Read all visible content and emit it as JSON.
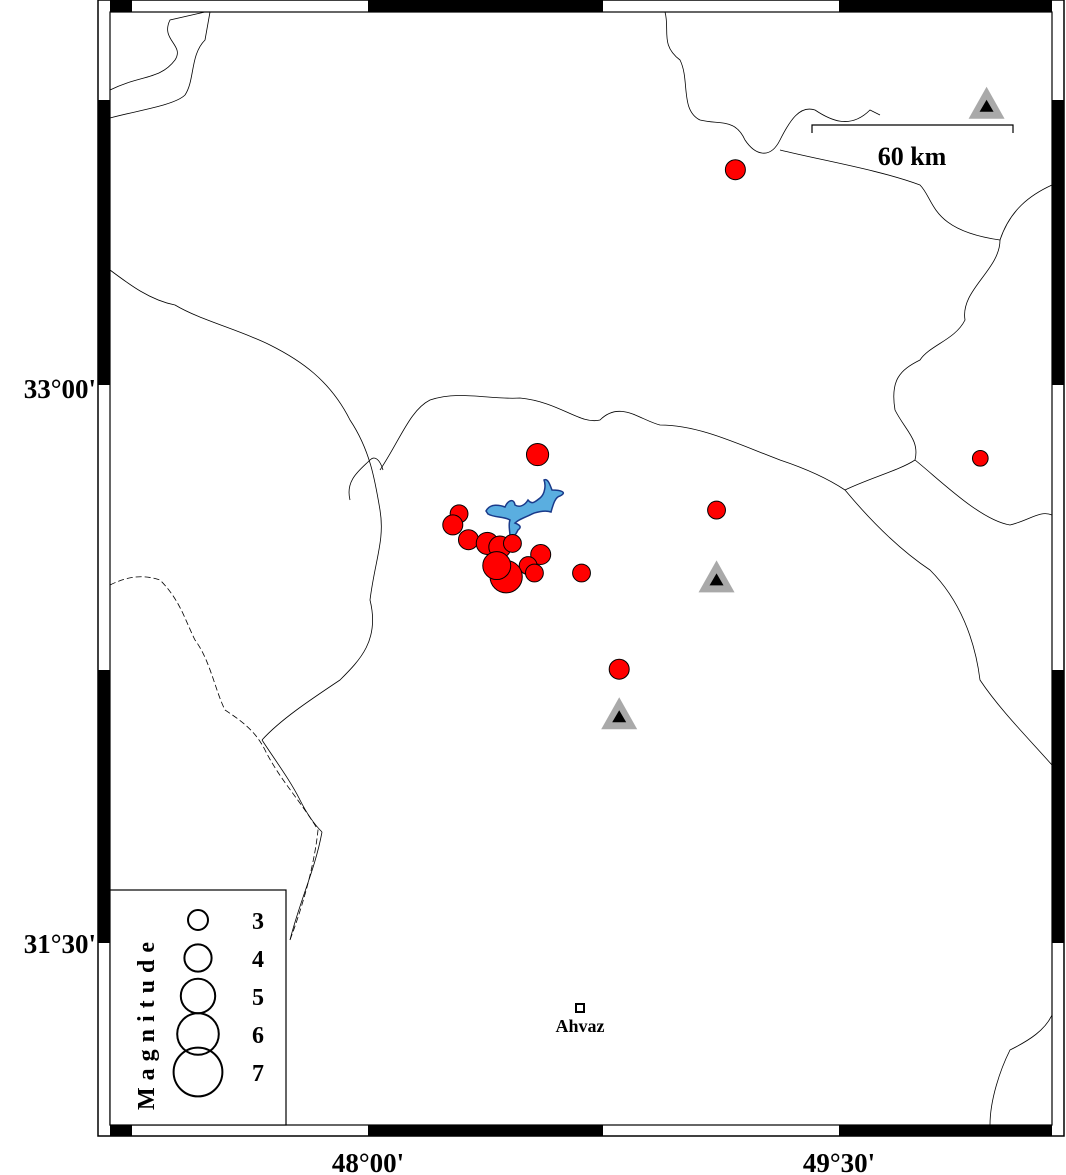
{
  "map": {
    "lat_labels": [
      "33°00'",
      "31°30'"
    ],
    "lon_labels": [
      "48°00'",
      "49°30'"
    ],
    "scale_bar": {
      "label": "60 km"
    },
    "city": {
      "name": "Ahvaz",
      "lon": 48.68,
      "lat": 31.32
    },
    "colors": {
      "event": "#ff0000",
      "lake": "#5aaee0",
      "station": "#a9a9a9",
      "station_inner": "#000000"
    },
    "legend": {
      "title": "Magnitude",
      "items": [
        {
          "label": "3",
          "mag": 3
        },
        {
          "label": "4",
          "mag": 4
        },
        {
          "label": "5",
          "mag": 5
        },
        {
          "label": "6",
          "mag": 6
        },
        {
          "label": "7",
          "mag": 7
        }
      ]
    },
    "events": [
      {
        "lon": 49.17,
        "lat": 33.59,
        "mag": 3.0
      },
      {
        "lon": 48.54,
        "lat": 32.82,
        "mag": 3.3
      },
      {
        "lon": 49.95,
        "lat": 32.81,
        "mag": 2.4
      },
      {
        "lon": 49.11,
        "lat": 32.67,
        "mag": 2.7
      },
      {
        "lon": 48.29,
        "lat": 32.66,
        "mag": 2.7
      },
      {
        "lon": 48.27,
        "lat": 32.63,
        "mag": 3.0
      },
      {
        "lon": 48.32,
        "lat": 32.59,
        "mag": 3.0
      },
      {
        "lon": 48.38,
        "lat": 32.58,
        "mag": 3.3
      },
      {
        "lon": 48.42,
        "lat": 32.57,
        "mag": 3.3
      },
      {
        "lon": 48.46,
        "lat": 32.58,
        "mag": 2.7
      },
      {
        "lon": 48.55,
        "lat": 32.55,
        "mag": 3.0
      },
      {
        "lon": 48.51,
        "lat": 32.52,
        "mag": 2.7
      },
      {
        "lon": 48.53,
        "lat": 32.5,
        "mag": 2.7
      },
      {
        "lon": 48.44,
        "lat": 32.49,
        "mag": 4.7
      },
      {
        "lon": 48.41,
        "lat": 32.52,
        "mag": 4.1
      },
      {
        "lon": 48.68,
        "lat": 32.5,
        "mag": 2.7
      },
      {
        "lon": 48.8,
        "lat": 32.24,
        "mag": 3.0
      }
    ],
    "stations": [
      {
        "lon": 49.97,
        "lat": 33.76
      },
      {
        "lon": 49.11,
        "lat": 32.48
      },
      {
        "lon": 48.8,
        "lat": 32.11
      }
    ]
  }
}
